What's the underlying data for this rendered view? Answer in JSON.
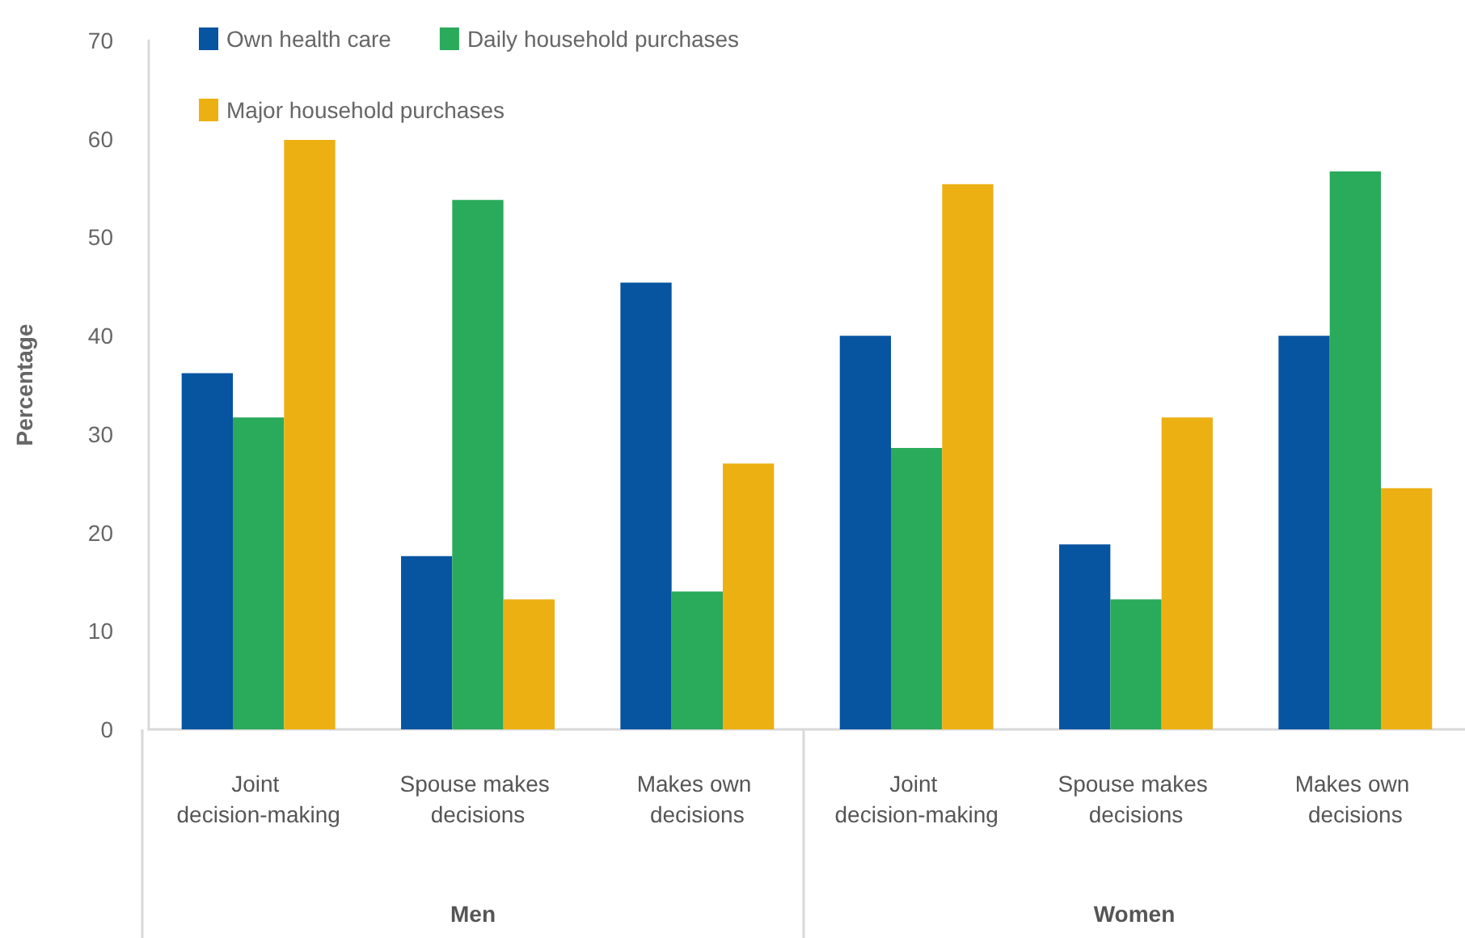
{
  "chart_data": {
    "type": "bar",
    "ylabel": "Percentage",
    "categories": [
      "Joint decision-making",
      "Spouse makes decisions",
      "Makes own decisions",
      "Joint decision-making",
      "Spouse makes decisions",
      "Makes own decisions"
    ],
    "series": [
      {
        "name": "Own health care",
        "color": "#0754a1",
        "values": [
          36.2,
          17.6,
          45.4,
          40.0,
          18.8,
          40.0
        ]
      },
      {
        "name": "Daily household purchases",
        "color": "#2aaa5b",
        "values": [
          31.7,
          53.8,
          14.0,
          28.6,
          13.2,
          56.7
        ]
      },
      {
        "name": "Major household purchases",
        "color": "#ecb013",
        "values": [
          59.9,
          13.2,
          27.0,
          55.4,
          31.7,
          24.5
        ]
      }
    ],
    "ylim": [
      0,
      70
    ],
    "yticks": [
      0,
      10,
      20,
      30,
      40,
      50,
      60,
      70
    ],
    "annotations": [
      "Men",
      "Women"
    ],
    "grid": false,
    "legend": "top left"
  }
}
